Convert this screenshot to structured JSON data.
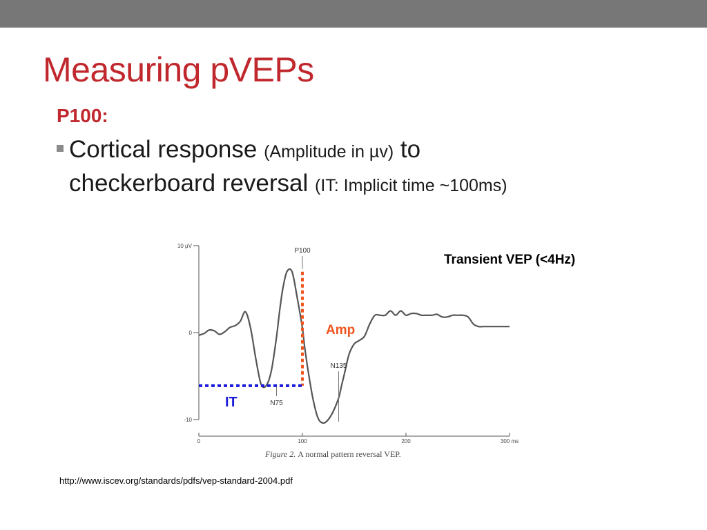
{
  "slide": {
    "title": "Measuring pVEPs",
    "subhead": "P100:",
    "bullet": {
      "part1": "Cortical response",
      "part2": "(Amplitude in µv)",
      "part3": "to",
      "part4": "checkerboard reversal",
      "part5": "(IT: Implicit time ~100ms)"
    },
    "source_url": "http://www.iscev.org/standards/pdfs/vep-standard-2004.pdf"
  },
  "colors": {
    "title_red": "#c0282d",
    "topbar_gray": "#777777",
    "amp_orange": "#f0541e",
    "it_blue": "#1a1adb"
  },
  "chart_data": {
    "type": "line",
    "title": "",
    "caption_prefix": "Figure 2.",
    "caption": "A normal pattern reversal VEP.",
    "xlabel": "",
    "ylabel": "",
    "xlim": [
      0,
      300
    ],
    "ylim": [
      -10,
      10
    ],
    "x_ticks": [
      {
        "value": 0,
        "label": "0"
      },
      {
        "value": 100,
        "label": "100"
      },
      {
        "value": 200,
        "label": "200"
      },
      {
        "value": 300,
        "label": "300 ms"
      }
    ],
    "y_ticks": [
      {
        "value": 10,
        "label": "10 µV"
      },
      {
        "value": 0,
        "label": "0"
      },
      {
        "value": -10,
        "label": "-10"
      }
    ],
    "series": [
      {
        "x": [
          0,
          5,
          10,
          15,
          20,
          25,
          30,
          35,
          40,
          45,
          50,
          55,
          60,
          65,
          70,
          75,
          78,
          81,
          85,
          90,
          95,
          100,
          102,
          105,
          110,
          115,
          120,
          125,
          130,
          135,
          138,
          141,
          145,
          150,
          155,
          160,
          165,
          170,
          175,
          180,
          185,
          190,
          195,
          200,
          205,
          210,
          215,
          220,
          225,
          230,
          235,
          240,
          245,
          250,
          255,
          260,
          265,
          270,
          275,
          280,
          285,
          290,
          295,
          300
        ],
        "y": [
          -0.3,
          -0.1,
          0.3,
          0.2,
          -0.2,
          0.1,
          0.6,
          0.8,
          1.3,
          2.4,
          0.5,
          -3.0,
          -5.9,
          -6.1,
          -4.4,
          -0.5,
          2.5,
          5.0,
          7.0,
          7.0,
          4.0,
          0.5,
          -1.5,
          -4.0,
          -7.5,
          -9.8,
          -10.4,
          -10.0,
          -9.0,
          -7.5,
          -6.0,
          -4.5,
          -2.5,
          -1.3,
          -0.9,
          -0.4,
          1.0,
          2.0,
          2.0,
          2.0,
          2.5,
          2.0,
          2.5,
          2.0,
          2.2,
          2.2,
          2.0,
          2.0,
          2.0,
          2.1,
          1.8,
          1.8,
          2.0,
          2.0,
          2.0,
          1.8,
          1.0,
          0.7,
          0.7,
          0.7,
          0.7,
          0.7,
          0.7,
          0.7
        ]
      }
    ],
    "peak_labels": [
      {
        "label": "P100",
        "x": 100,
        "y": 7.0
      },
      {
        "label": "N75",
        "x": 75,
        "y": -6.1
      },
      {
        "label": "N135",
        "x": 135,
        "y": -10.4
      }
    ],
    "annotations": [
      {
        "label": "Amp",
        "type": "amplitude",
        "x": 100,
        "y_from": -6.1,
        "y_to": 7.0
      },
      {
        "label": "IT",
        "type": "implicit-time",
        "y": -6.1,
        "x_from": 0,
        "x_to": 100
      },
      {
        "label": "Transient VEP (<4Hz)",
        "type": "note"
      }
    ]
  }
}
